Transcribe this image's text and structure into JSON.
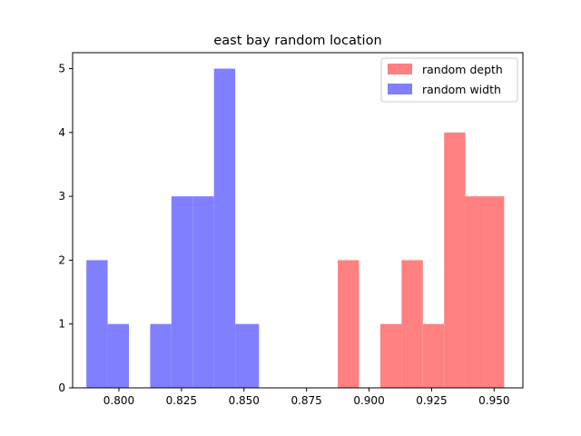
{
  "chart_data": {
    "type": "bar",
    "title": "east bay random location",
    "xlabel": "",
    "ylabel": "",
    "xlim": [
      0.7815,
      0.9615
    ],
    "ylim": [
      0,
      5.25
    ],
    "x_ticks": [
      0.8,
      0.825,
      0.85,
      0.875,
      0.9,
      0.925,
      0.95
    ],
    "x_tick_labels": [
      "0.800",
      "0.825",
      "0.850",
      "0.875",
      "0.900",
      "0.925",
      "0.950"
    ],
    "y_ticks": [
      0,
      1,
      2,
      3,
      4,
      5
    ],
    "y_tick_labels": [
      "0",
      "1",
      "2",
      "3",
      "4",
      "5"
    ],
    "legend_position": "top-right",
    "grid": false,
    "series": [
      {
        "name": "random depth",
        "color": "#ff8080",
        "bins": [
          {
            "x0": 0.8875,
            "x1": 0.896,
            "count": 2
          },
          {
            "x0": 0.9045,
            "x1": 0.913,
            "count": 1
          },
          {
            "x0": 0.913,
            "x1": 0.9215,
            "count": 2
          },
          {
            "x0": 0.9215,
            "x1": 0.93,
            "count": 1
          },
          {
            "x0": 0.93,
            "x1": 0.9385,
            "count": 4
          },
          {
            "x0": 0.9385,
            "x1": 0.947,
            "count": 3
          },
          {
            "x0": 0.947,
            "x1": 0.954,
            "count": 3
          }
        ]
      },
      {
        "name": "random width",
        "color": "#8080ff",
        "bins": [
          {
            "x0": 0.787,
            "x1": 0.7955,
            "count": 2
          },
          {
            "x0": 0.7955,
            "x1": 0.804,
            "count": 1
          },
          {
            "x0": 0.8125,
            "x1": 0.821,
            "count": 1
          },
          {
            "x0": 0.821,
            "x1": 0.8295,
            "count": 3
          },
          {
            "x0": 0.8295,
            "x1": 0.838,
            "count": 3
          },
          {
            "x0": 0.838,
            "x1": 0.8465,
            "count": 5
          },
          {
            "x0": 0.8465,
            "x1": 0.856,
            "count": 1
          }
        ]
      }
    ]
  }
}
